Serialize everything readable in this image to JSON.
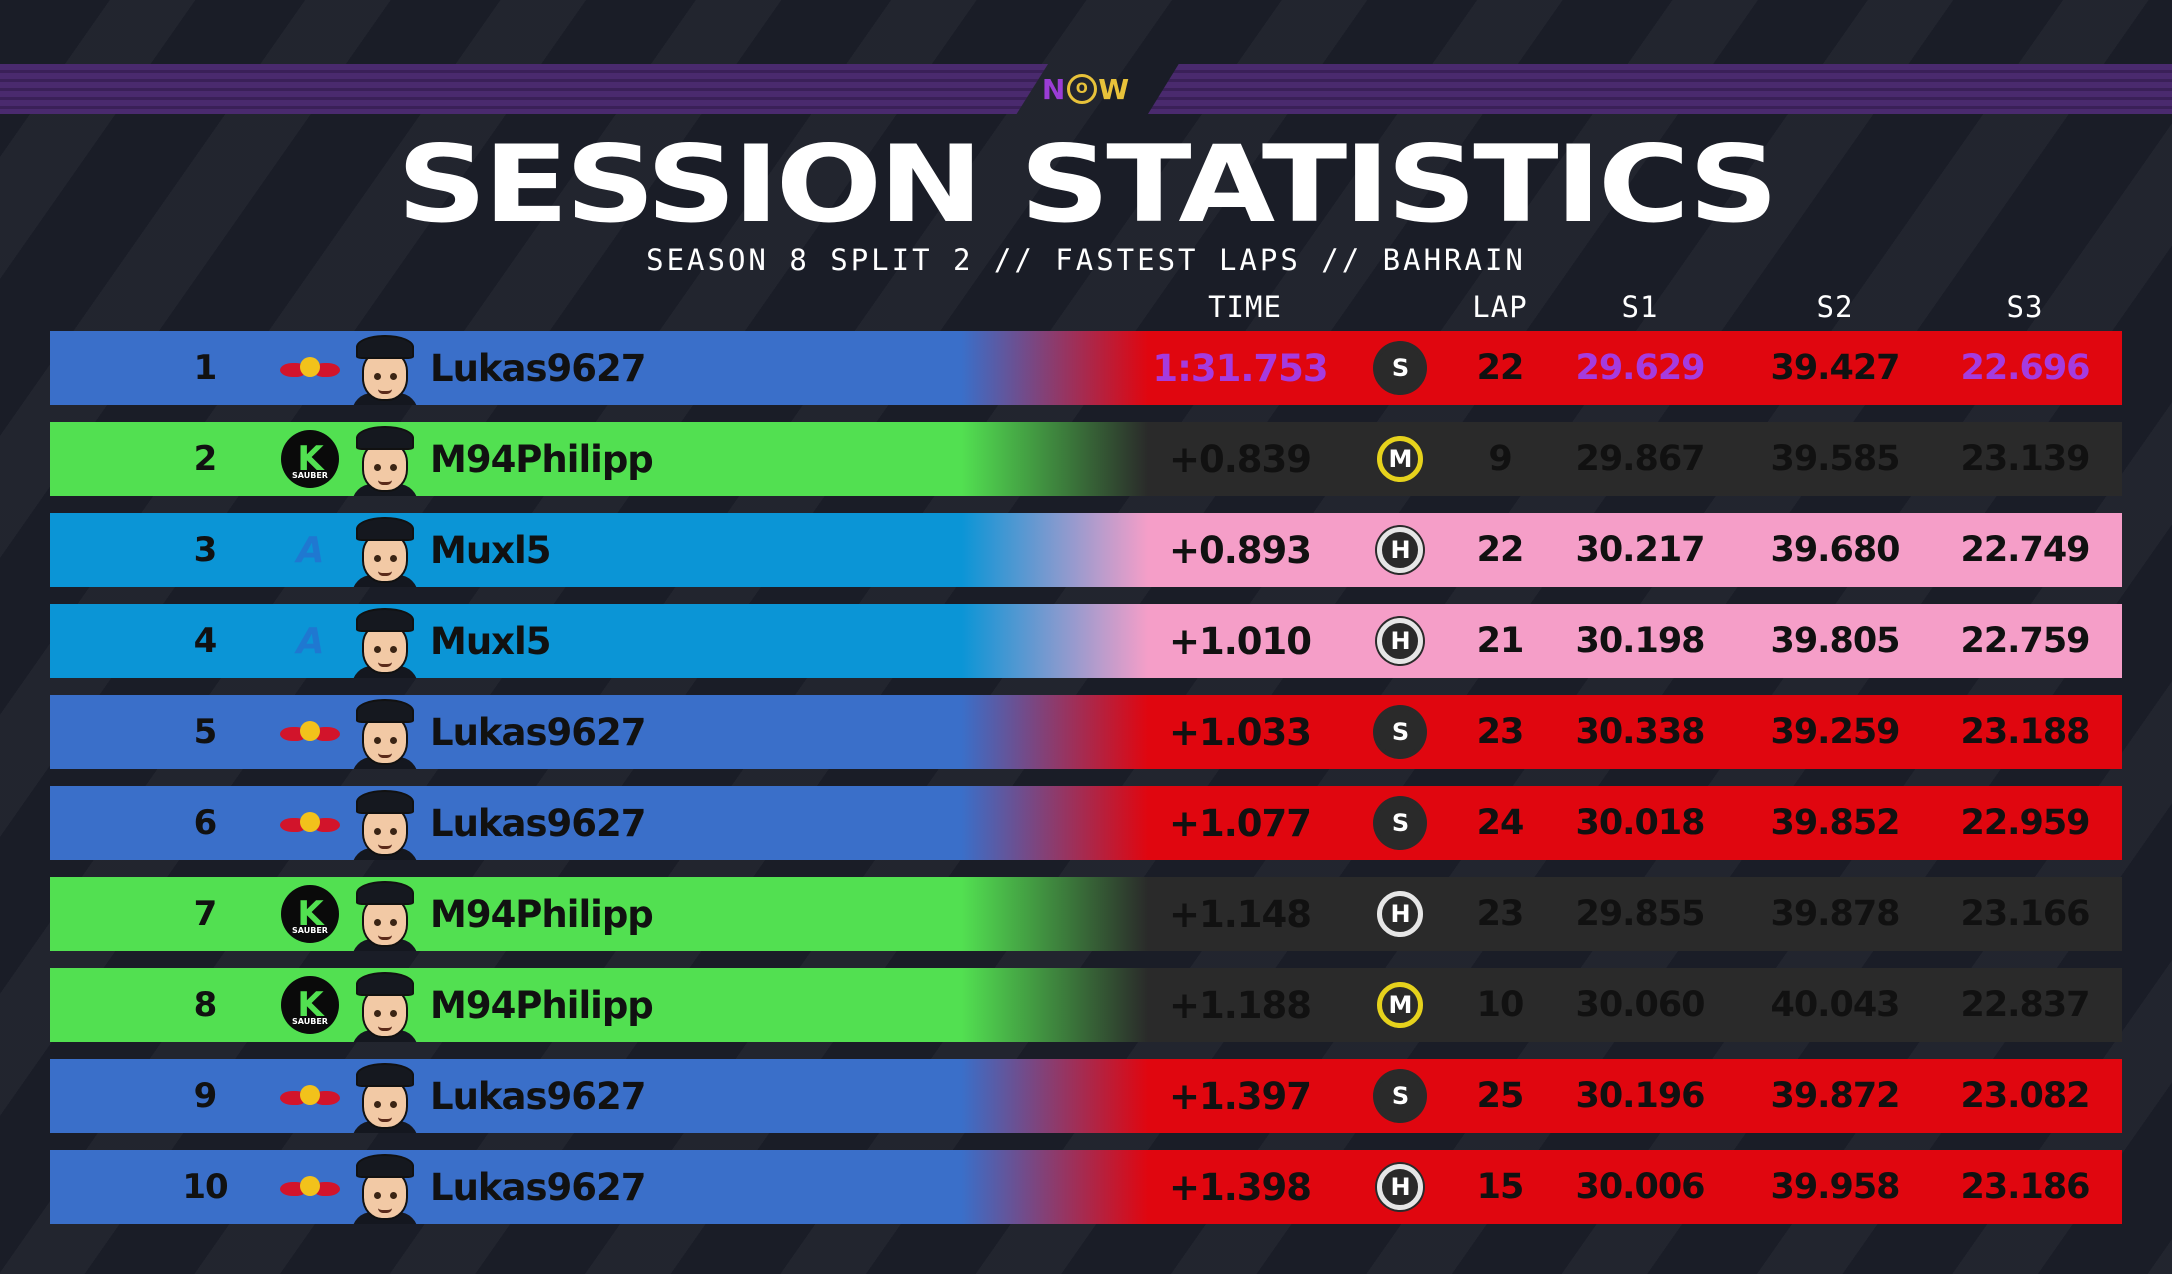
{
  "header": {
    "logo_text_n": "N",
    "logo_text_o": "O",
    "logo_text_w": "W",
    "title": "SESSION STATISTICS",
    "subtitle": "SEASON 8 SPLIT 2 // FASTEST LAPS // BAHRAIN"
  },
  "columns": {
    "time": "TIME",
    "lap": "LAP",
    "s1": "S1",
    "s2": "S2",
    "s3": "S3"
  },
  "colors": {
    "redbull_left": "#3a6fc9",
    "redbull_right": "#e0060f",
    "sauber_left": "#52e051",
    "sauber_right": "#2a2a2a",
    "alpine_left": "#0b95d6",
    "alpine_right": "#f59ec8",
    "fastest": "#a53bdf"
  },
  "rows": [
    {
      "pos": "1",
      "team": "redbull",
      "team_icon": "red-bull-logo",
      "driver": "Lukas9627",
      "time": "1:31.753",
      "tyre": "S",
      "tyre_type": "soft",
      "lap": "22",
      "s1": "29.629",
      "s2": "39.427",
      "s3": "22.696",
      "time_fastest": true,
      "s1_fastest": true,
      "s3_fastest": true
    },
    {
      "pos": "2",
      "team": "sauber",
      "team_icon": "kick-sauber-logo",
      "driver": "M94Philipp",
      "time": "+0.839",
      "tyre": "M",
      "tyre_type": "medium",
      "lap": "9",
      "s1": "29.867",
      "s2": "39.585",
      "s3": "23.139"
    },
    {
      "pos": "3",
      "team": "alpine",
      "team_icon": "alpine-logo",
      "driver": "Muxl5",
      "time": "+0.893",
      "tyre": "H",
      "tyre_type": "hard",
      "lap": "22",
      "s1": "30.217",
      "s2": "39.680",
      "s3": "22.749"
    },
    {
      "pos": "4",
      "team": "alpine",
      "team_icon": "alpine-logo",
      "driver": "Muxl5",
      "time": "+1.010",
      "tyre": "H",
      "tyre_type": "hard",
      "lap": "21",
      "s1": "30.198",
      "s2": "39.805",
      "s3": "22.759"
    },
    {
      "pos": "5",
      "team": "redbull",
      "team_icon": "red-bull-logo",
      "driver": "Lukas9627",
      "time": "+1.033",
      "tyre": "S",
      "tyre_type": "soft",
      "lap": "23",
      "s1": "30.338",
      "s2": "39.259",
      "s3": "23.188"
    },
    {
      "pos": "6",
      "team": "redbull",
      "team_icon": "red-bull-logo",
      "driver": "Lukas9627",
      "time": "+1.077",
      "tyre": "S",
      "tyre_type": "soft",
      "lap": "24",
      "s1": "30.018",
      "s2": "39.852",
      "s3": "22.959"
    },
    {
      "pos": "7",
      "team": "sauber",
      "team_icon": "kick-sauber-logo",
      "driver": "M94Philipp",
      "time": "+1.148",
      "tyre": "H",
      "tyre_type": "hard",
      "lap": "23",
      "s1": "29.855",
      "s2": "39.878",
      "s3": "23.166"
    },
    {
      "pos": "8",
      "team": "sauber",
      "team_icon": "kick-sauber-logo",
      "driver": "M94Philipp",
      "time": "+1.188",
      "tyre": "M",
      "tyre_type": "medium",
      "lap": "10",
      "s1": "30.060",
      "s2": "40.043",
      "s3": "22.837"
    },
    {
      "pos": "9",
      "team": "redbull",
      "team_icon": "red-bull-logo",
      "driver": "Lukas9627",
      "time": "+1.397",
      "tyre": "S",
      "tyre_type": "soft",
      "lap": "25",
      "s1": "30.196",
      "s2": "39.872",
      "s3": "23.082"
    },
    {
      "pos": "10",
      "team": "redbull",
      "team_icon": "red-bull-logo",
      "driver": "Lukas9627",
      "time": "+1.398",
      "tyre": "H",
      "tyre_type": "hard",
      "lap": "15",
      "s1": "30.006",
      "s2": "39.958",
      "s3": "23.186"
    }
  ]
}
